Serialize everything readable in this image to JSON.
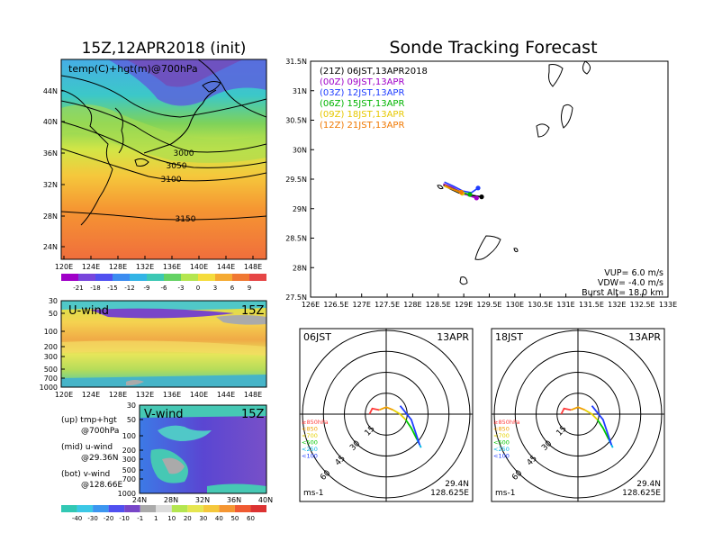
{
  "left_panel": {
    "title": "15Z,12APR2018 (init)",
    "map_label": "temp(C)+hgt(m)@700hPa",
    "lat_ticks": [
      "44N",
      "40N",
      "36N",
      "32N",
      "28N",
      "24N"
    ],
    "lon_ticks": [
      "120E",
      "124E",
      "128E",
      "132E",
      "136E",
      "140E",
      "144E",
      "148E"
    ],
    "contour_labels": [
      "3000",
      "3050",
      "3100",
      "3150"
    ],
    "temp_colorbar": [
      "-21",
      "-18",
      "-15",
      "-12",
      "-9",
      "-6",
      "-3",
      "0",
      "3",
      "6",
      "9"
    ],
    "u_wind": {
      "label": "U-wind",
      "time": "15Z",
      "p_ticks": [
        "30",
        "50",
        "100",
        "200",
        "300",
        "500",
        "700",
        "1000"
      ],
      "lon_ticks": [
        "120E",
        "124E",
        "128E",
        "132E",
        "136E",
        "140E",
        "144E",
        "148E"
      ]
    },
    "v_wind": {
      "label": "V-wind",
      "time": "15Z",
      "p_ticks": [
        "30",
        "50",
        "100",
        "200",
        "300",
        "500",
        "700",
        "1000"
      ],
      "lat_ticks": [
        "24N",
        "28N",
        "32N",
        "36N",
        "40N"
      ]
    },
    "legend_notes": [
      {
        "head": "(up) tmp+hgt",
        "sub": "@700hPa"
      },
      {
        "head": "(mid) u-wind",
        "sub": "@29.36N"
      },
      {
        "head": "(bot) v-wind",
        "sub": "@128.66E"
      }
    ],
    "wind_colorbar": [
      "-40",
      "-30",
      "-20",
      "-10",
      "-1",
      "1",
      "10",
      "20",
      "30",
      "40",
      "50",
      "60"
    ]
  },
  "right_panel": {
    "title": "Sonde Tracking Forecast",
    "legend": [
      {
        "text": "(21Z)  06JST,13APR2018",
        "color": "#000000"
      },
      {
        "text": "(00Z)  09JST,13APR",
        "color": "#a000c8"
      },
      {
        "text": "(03Z)  12JST,13APR",
        "color": "#1e3cff"
      },
      {
        "text": "(06Z)  15JST,13APR",
        "color": "#00b400"
      },
      {
        "text": "(09Z)  18JST,13APR",
        "color": "#e6c800"
      },
      {
        "text": "(12Z)  21JST,13APR",
        "color": "#f07800"
      }
    ],
    "params": [
      "VUP=  6.0  m/s",
      "VDW= -4.0  m/s",
      "Burst Alt=  18.0  km"
    ],
    "hodographs": [
      {
        "time": "06JST",
        "date": "13APR",
        "lat": "29.4N",
        "lon": "128.625E",
        "unit": "ms-1",
        "ring_labels": [
          "15",
          "30",
          "45",
          "60"
        ]
      },
      {
        "time": "18JST",
        "date": "13APR",
        "lat": "29.4N",
        "lon": "128.625E",
        "unit": "ms-1",
        "ring_labels": [
          "15",
          "30",
          "45",
          "60"
        ]
      }
    ],
    "level_key": [
      {
        "text": "≥850hPa",
        "color": "#ff3c3c"
      },
      {
        "text": "<850",
        "color": "#f0a000"
      },
      {
        "text": "<700",
        "color": "#e6d200"
      },
      {
        "text": "<500",
        "color": "#00c800"
      },
      {
        "text": "<250",
        "color": "#00b4e6"
      },
      {
        "text": "<100",
        "color": "#1e3cff"
      }
    ]
  },
  "chart_data": [
    {
      "type": "heatmap",
      "title": "15Z,12APR2018 (init)",
      "label": "temp(C)+hgt(m)@700hPa",
      "xlim": [
        120,
        150
      ],
      "ylim": [
        22,
        47
      ],
      "contour_levels_m": [
        3000,
        3050,
        3100,
        3150
      ],
      "colorbar": [
        -21,
        -18,
        -15,
        -12,
        -9,
        -6,
        -3,
        0,
        3,
        6,
        9
      ]
    },
    {
      "type": "heatmap",
      "label": "U-wind",
      "time": "15Z",
      "xlim": [
        120,
        150
      ],
      "pressure_levels": [
        30,
        50,
        100,
        200,
        300,
        500,
        700,
        1000
      ]
    },
    {
      "type": "heatmap",
      "label": "V-wind",
      "time": "15Z",
      "xlim": [
        24,
        40
      ],
      "pressure_levels": [
        30,
        50,
        100,
        200,
        300,
        500,
        700,
        1000
      ],
      "colorbar": [
        -40,
        -30,
        -20,
        -10,
        -1,
        1,
        10,
        20,
        30,
        40,
        50,
        60
      ]
    },
    {
      "type": "line",
      "title": "Sonde Tracking Forecast",
      "xlim": [
        126,
        133
      ],
      "ylim": [
        27.5,
        31.5
      ],
      "x_ticks": [
        "126E",
        "126.5E",
        "127E",
        "127.5E",
        "128E",
        "128.5E",
        "129E",
        "129.5E",
        "130E",
        "130.5E",
        "131E",
        "131.5E",
        "132E",
        "132.5E",
        "133E"
      ],
      "y_ticks": [
        "31.5N",
        "31N",
        "30.5N",
        "30N",
        "29.5N",
        "29N",
        "28.5N",
        "28N",
        "27.5N"
      ],
      "series": [
        {
          "name": "(21Z)  06JST,13APR2018",
          "color": "#000000",
          "x": [
            128.6,
            128.75,
            128.9,
            129.05,
            129.2,
            129.35
          ],
          "y": [
            29.4,
            29.33,
            29.27,
            29.24,
            29.22,
            29.2
          ]
        },
        {
          "name": "(00Z)  09JST,13APR",
          "color": "#a000c8",
          "x": [
            128.6,
            128.78,
            128.95,
            129.1,
            129.25
          ],
          "y": [
            29.42,
            29.36,
            29.28,
            29.22,
            29.18
          ]
        },
        {
          "name": "(03Z)  12JST,13APR",
          "color": "#1e3cff",
          "x": [
            128.62,
            128.8,
            128.98,
            129.15,
            129.28
          ],
          "y": [
            29.45,
            29.38,
            29.3,
            29.27,
            29.35
          ]
        },
        {
          "name": "(06Z)  15JST,13APR",
          "color": "#00b400",
          "x": [
            128.62,
            128.8,
            128.98,
            129.12
          ],
          "y": [
            29.4,
            29.33,
            29.27,
            29.24
          ]
        },
        {
          "name": "(09Z)  18JST,13APR",
          "color": "#e6c800",
          "x": [
            128.62,
            128.8,
            128.97
          ],
          "y": [
            29.38,
            29.32,
            29.26
          ]
        },
        {
          "name": "(12Z)  21JST,13APR",
          "color": "#f07800",
          "x": [
            128.62,
            128.78,
            128.95
          ],
          "y": [
            29.4,
            29.33,
            29.28
          ]
        }
      ]
    }
  ]
}
